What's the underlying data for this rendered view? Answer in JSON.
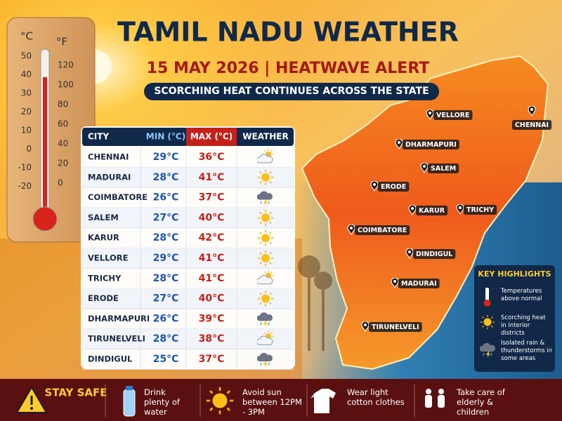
{
  "header": {
    "title": "TAMIL NADU WEATHER",
    "subtitle": "15 MAY 2026 | HEATWAVE ALERT",
    "tagline": "SCORCHING HEAT CONTINUES ACROSS THE STATE"
  },
  "thermometer": {
    "celsius_unit": "°C",
    "fahrenheit_unit": "°F",
    "celsius_scale": [
      50,
      40,
      30,
      20,
      10,
      0,
      -10,
      -20
    ],
    "fahrenheit_scale": [
      120,
      100,
      80,
      60,
      40,
      20,
      0
    ]
  },
  "table": {
    "columns": [
      "CITY",
      "MIN (°C)",
      "MAX (°C)",
      "WEATHER"
    ],
    "rows": [
      [
        "CHENNAI",
        "29°C",
        "36°C"
      ],
      [
        "MADURAI",
        "28°C",
        "41°C"
      ],
      [
        "COIMBATORE",
        "26°C",
        "37°C"
      ],
      [
        "SALEM",
        "27°C",
        "40°C"
      ],
      [
        "KARUR",
        "28°C",
        "42°C"
      ],
      [
        "VELLORE",
        "29°C",
        "41°C"
      ],
      [
        "TRICHY",
        "28°C",
        "41°C"
      ],
      [
        "ERODE",
        "27°C",
        "40°C"
      ],
      [
        "DHARMAPURI",
        "26°C",
        "39°C"
      ],
      [
        "TIRUNELVELI",
        "28°C",
        "38°C"
      ],
      [
        "DINDIGUL",
        "25°C",
        "37°C"
      ]
    ]
  },
  "map": {
    "cities": [
      "VELLORE",
      "CHENNAI",
      "DHARMAPURI",
      "SALEM",
      "ERODE",
      "KARUR",
      "TRICHY",
      "COIMBATORE",
      "DINDIGUL",
      "MADURAI",
      "TIRUNELVELI"
    ]
  },
  "key_highlights": {
    "title": "KEY HIGHLIGHTS",
    "items": [
      "Temperatures above normal",
      "Scorching heat in interior districts",
      "Isolated rain & thunderstorms in some areas"
    ]
  },
  "footer": {
    "title": "STAY SAFE",
    "tips": [
      "Drink plenty of water",
      "Avoid sun between 12PM - 3PM",
      "Wear light cotton clothes",
      "Take care of elderly & children"
    ]
  }
}
